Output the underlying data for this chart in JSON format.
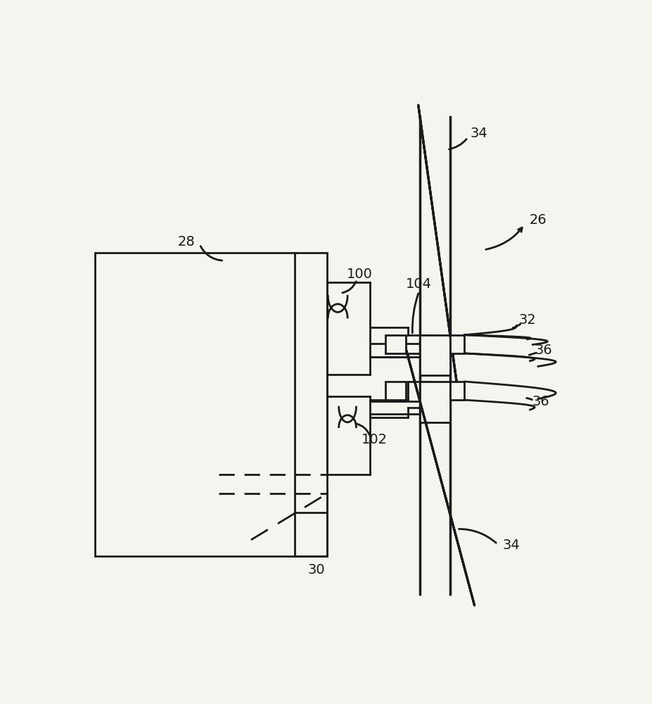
{
  "bg_color": "#f5f5f0",
  "line_color": "#1a1a1a",
  "label_color": "#1a1a1a",
  "fig_width": 9.28,
  "fig_height": 10.0
}
